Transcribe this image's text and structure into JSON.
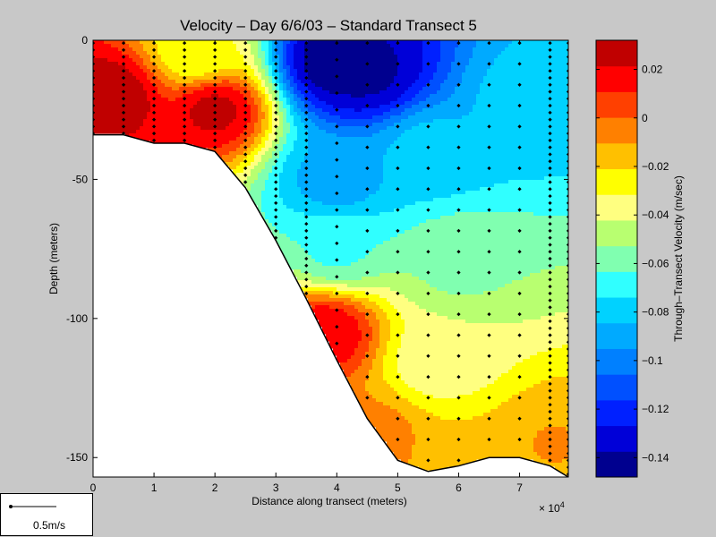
{
  "chart_data": {
    "type": "heatmap",
    "title": "Velocity – Day 6/6/03 – Standard Transect 5",
    "xlabel": "Distance along transect (meters)",
    "ylabel": "Depth (meters)",
    "x_multiplier_label": "× 10",
    "x_multiplier_exponent": "4",
    "x_ticks": [
      0,
      1,
      2,
      3,
      4,
      5,
      6,
      7
    ],
    "y_ticks": [
      0,
      -50,
      -100,
      -150
    ],
    "xlim": [
      0,
      78000
    ],
    "ylim": [
      -157,
      0
    ],
    "colorbar_label": "Through–Transect Velocity (m/sec)",
    "colorbar_ticks": [
      "0.02",
      "0",
      "−0.02",
      "−0.04",
      "−0.06",
      "−0.08",
      "−0.1",
      "−0.12",
      "−0.14"
    ],
    "colorbar_tick_values": [
      0.02,
      0,
      -0.02,
      -0.04,
      -0.06,
      -0.08,
      -0.1,
      -0.12,
      -0.14
    ],
    "color_range": [
      -0.148,
      0.032
    ],
    "colormap": [
      "#00008f",
      "#0000d8",
      "#0020ff",
      "#0050ff",
      "#0080ff",
      "#00aaff",
      "#00d2ff",
      "#30ffff",
      "#80ffb0",
      "#b8ff70",
      "#ffff80",
      "#ffff00",
      "#ffc000",
      "#ff8000",
      "#ff4000",
      "#ff0000",
      "#c00000"
    ],
    "bathymetry": {
      "x": [
        0,
        5000,
        10000,
        15000,
        20000,
        25000,
        30000,
        35000,
        40000,
        45000,
        50000,
        55000,
        60000,
        65000,
        70000,
        75000,
        78000
      ],
      "depth": [
        -34,
        -34,
        -37,
        -37,
        -40,
        -53,
        -72,
        -93,
        -115,
        -136,
        -151,
        -155,
        -153,
        -150,
        -150,
        -153,
        -157
      ]
    },
    "velocity_features": [
      {
        "x": 3000,
        "depth": -20,
        "velocity": 0.03
      },
      {
        "x": 20000,
        "depth": -25,
        "velocity": 0.025
      },
      {
        "x": 17000,
        "depth": -5,
        "velocity": -0.03
      },
      {
        "x": 40000,
        "depth": -8,
        "velocity": -0.148
      },
      {
        "x": 45000,
        "depth": -12,
        "velocity": -0.14
      },
      {
        "x": 40000,
        "depth": -50,
        "velocity": -0.09
      },
      {
        "x": 40000,
        "depth": -75,
        "velocity": -0.065
      },
      {
        "x": 55000,
        "depth": -40,
        "velocity": -0.08
      },
      {
        "x": 60000,
        "depth": -80,
        "velocity": -0.055
      },
      {
        "x": 72000,
        "depth": -20,
        "velocity": -0.08
      },
      {
        "x": 57000,
        "depth": -115,
        "velocity": -0.04
      },
      {
        "x": 38000,
        "depth": -105,
        "velocity": 0.02
      },
      {
        "x": 46000,
        "depth": -143,
        "velocity": -0.005
      },
      {
        "x": 62000,
        "depth": -148,
        "velocity": -0.02
      },
      {
        "x": 75000,
        "depth": -145,
        "velocity": -0.01
      }
    ],
    "grid": false
  },
  "scale_bar": {
    "label": "0.5m/s"
  }
}
